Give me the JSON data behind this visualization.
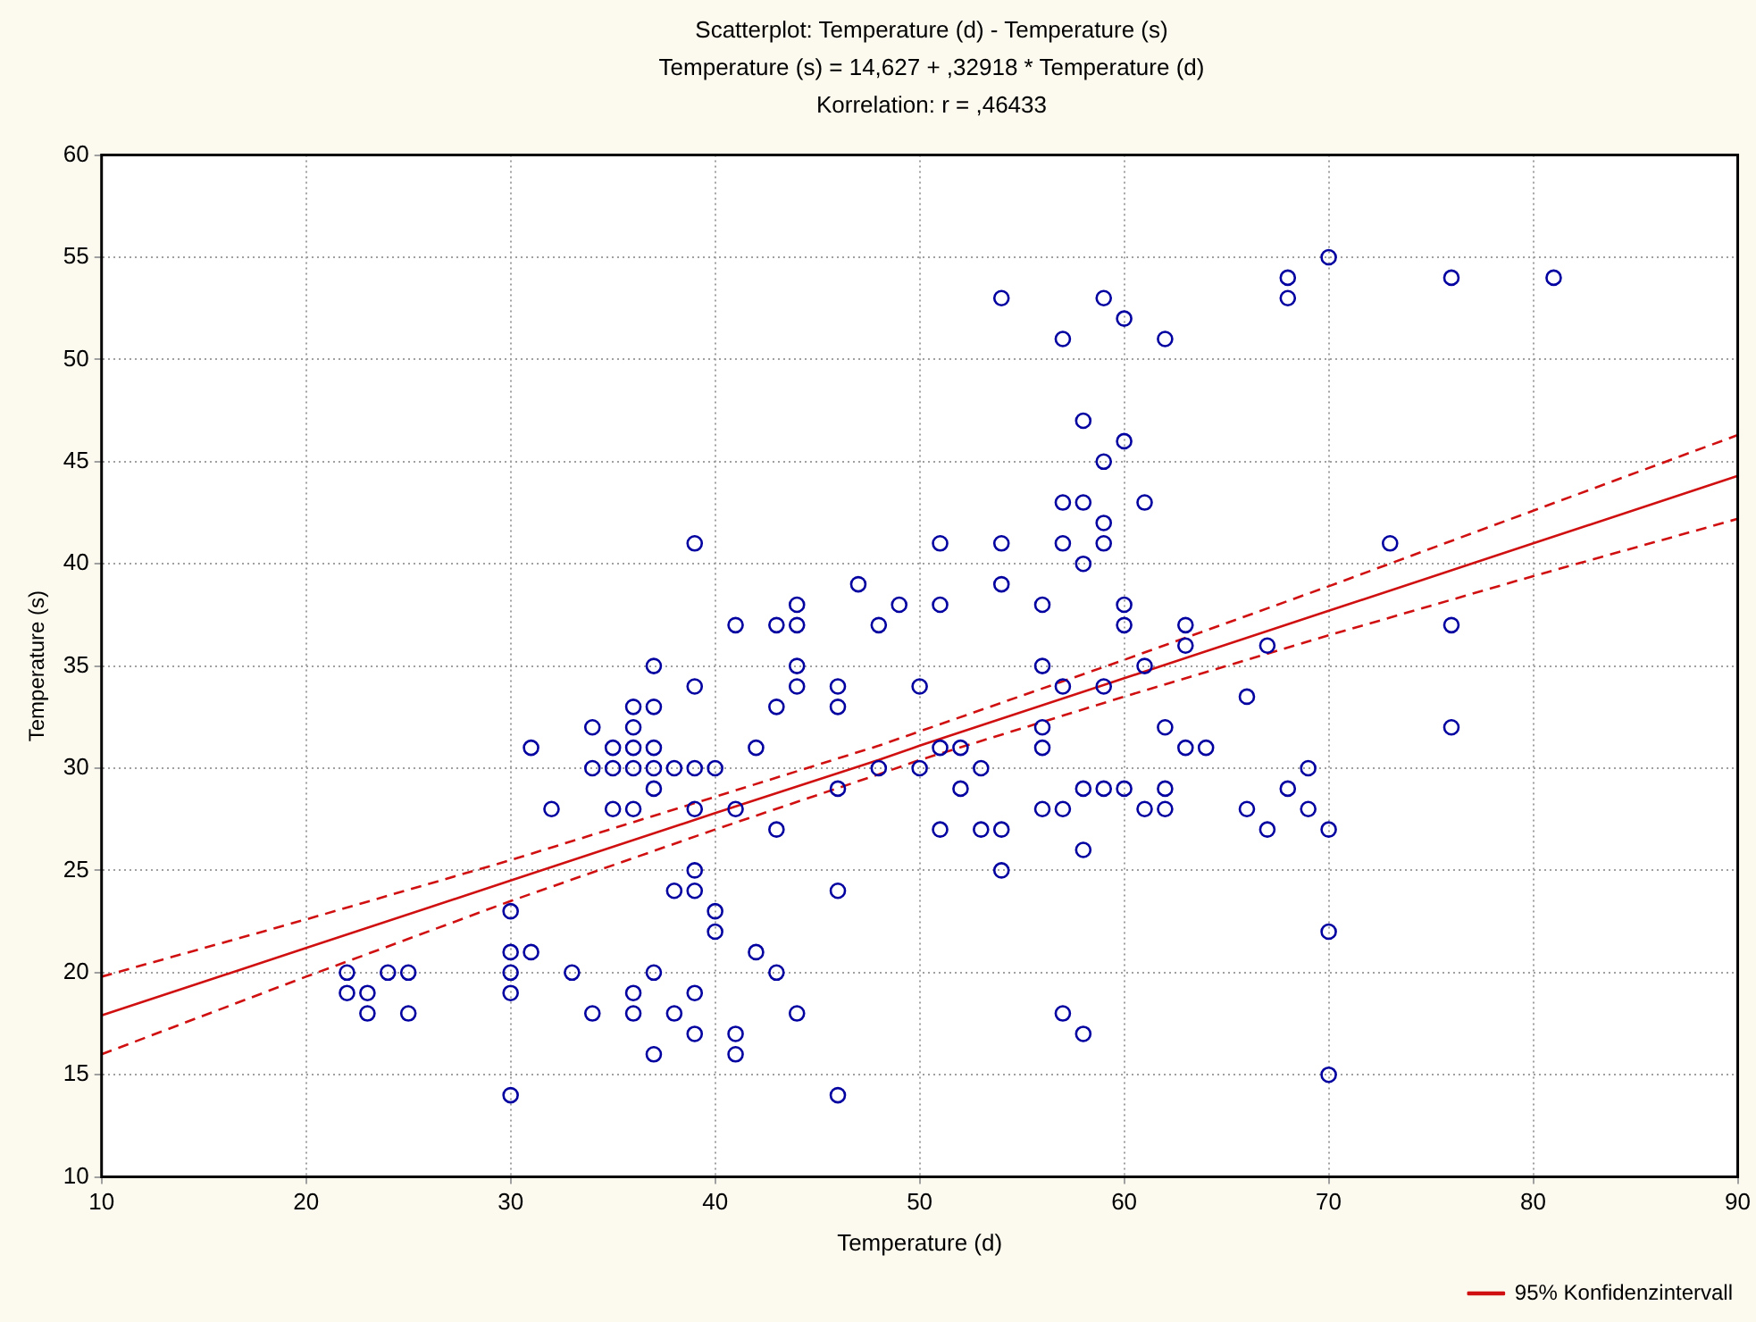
{
  "chart_data": {
    "type": "scatter",
    "title": "Scatterplot: Temperature (d)  -  Temperature (s)",
    "subtitle": "Temperature (s) = 14,627 + ,32918 * Temperature (d)",
    "annotations": [
      "Korrelation: r = ,46433"
    ],
    "xlabel": "Temperature (d)",
    "ylabel": "Temperature (s)",
    "xlim": [
      10,
      90
    ],
    "ylim": [
      10,
      60
    ],
    "xticks": [
      10,
      20,
      30,
      40,
      50,
      60,
      70,
      80,
      90
    ],
    "yticks": [
      10,
      15,
      20,
      25,
      30,
      35,
      40,
      45,
      50,
      55,
      60
    ],
    "grid": true,
    "legend": "bottom right",
    "series": [
      {
        "color": "#0000a0",
        "marker": "circle",
        "x": [
          22,
          22,
          23,
          23,
          24,
          25,
          25,
          30,
          30,
          30,
          30,
          30,
          31,
          31,
          32,
          33,
          34,
          34,
          34,
          35,
          35,
          35,
          36,
          36,
          36,
          36,
          36,
          36,
          36,
          37,
          37,
          37,
          37,
          37,
          37,
          37,
          38,
          38,
          38,
          39,
          39,
          39,
          39,
          39,
          39,
          39,
          39,
          40,
          40,
          40,
          41,
          41,
          41,
          41,
          42,
          42,
          43,
          43,
          43,
          43,
          44,
          44,
          44,
          44,
          44,
          46,
          46,
          46,
          46,
          46,
          47,
          48,
          48,
          49,
          50,
          50,
          51,
          51,
          51,
          51,
          52,
          52,
          53,
          53,
          54,
          54,
          54,
          54,
          54,
          56,
          56,
          56,
          56,
          56,
          57,
          57,
          57,
          57,
          57,
          57,
          58,
          58,
          58,
          58,
          58,
          58,
          59,
          59,
          59,
          59,
          59,
          59,
          60,
          60,
          60,
          60,
          60,
          61,
          61,
          61,
          62,
          62,
          62,
          62,
          63,
          63,
          63,
          64,
          66,
          66,
          67,
          67,
          68,
          68,
          68,
          69,
          69,
          70,
          70,
          70,
          70,
          73,
          76,
          76,
          76,
          81
        ],
        "values": [
          20,
          19,
          19,
          18,
          20,
          20,
          18,
          23,
          21,
          20,
          19,
          14,
          21,
          31,
          28,
          20,
          32,
          30,
          18,
          31,
          30,
          28,
          33,
          32,
          31,
          30,
          28,
          19,
          18,
          35,
          33,
          31,
          30,
          29,
          20,
          16,
          30,
          24,
          18,
          41,
          34,
          30,
          28,
          25,
          24,
          19,
          17,
          30,
          23,
          22,
          37,
          28,
          17,
          16,
          31,
          21,
          37,
          33,
          27,
          20,
          38,
          37,
          35,
          34,
          18,
          34,
          33,
          29,
          24,
          14,
          39,
          37,
          30,
          38,
          34,
          30,
          41,
          38,
          31,
          27,
          31,
          29,
          30,
          27,
          53,
          41,
          39,
          27,
          25,
          38,
          35,
          32,
          31,
          28,
          51,
          43,
          41,
          34,
          28,
          18,
          47,
          43,
          40,
          29,
          26,
          17,
          53,
          45,
          42,
          41,
          34,
          29,
          52,
          46,
          38,
          37,
          29,
          43,
          35,
          28,
          51,
          32,
          29,
          28,
          37,
          36,
          31,
          31,
          33.5,
          28,
          36,
          27,
          54,
          53,
          29,
          30,
          28,
          55,
          27,
          22,
          15,
          41,
          54,
          37,
          32,
          54
        ]
      },
      {
        "type": "line",
        "name": "95% Konfidenzintervall",
        "color": "#d01010",
        "marker": "none",
        "line_style": "solid",
        "x": [
          10,
          20,
          30,
          40,
          48,
          50,
          60,
          70,
          80,
          90
        ],
        "values": [
          17.9,
          21.2,
          24.5,
          27.8,
          30.4,
          31.1,
          34.4,
          37.7,
          41.0,
          44.3
        ]
      },
      {
        "type": "line",
        "color": "#d01010",
        "marker": "none",
        "line_style": "dashed",
        "x": [
          10,
          20,
          30,
          40,
          48,
          50,
          60,
          70,
          80,
          90
        ],
        "values": [
          16.0,
          19.8,
          23.5,
          27.0,
          29.7,
          30.4,
          33.5,
          36.5,
          39.4,
          42.2
        ]
      },
      {
        "type": "line",
        "color": "#d01010",
        "marker": "none",
        "line_style": "dashed",
        "x": [
          10,
          20,
          30,
          40,
          48,
          50,
          60,
          70,
          80,
          90
        ],
        "values": [
          19.8,
          22.6,
          25.5,
          28.6,
          31.1,
          31.8,
          35.3,
          38.9,
          42.6,
          46.3
        ]
      }
    ]
  }
}
